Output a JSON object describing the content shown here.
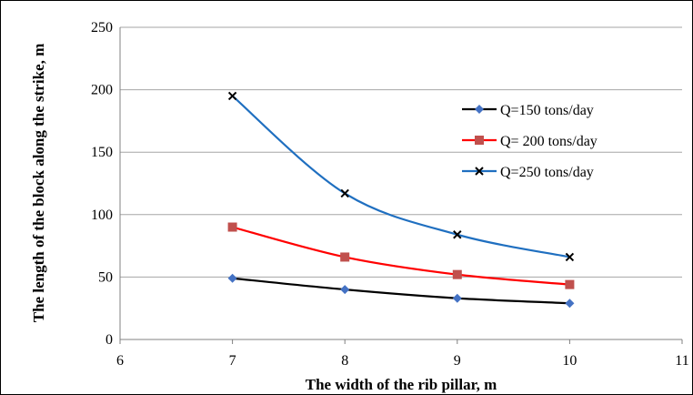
{
  "chart_data": {
    "type": "line",
    "xlabel": "The width of the rib pillar, m",
    "ylabel": "The length of the block along the strike, m",
    "xlim": [
      6,
      11
    ],
    "ylim": [
      0,
      250
    ],
    "x_ticks": [
      6,
      7,
      8,
      9,
      10,
      11
    ],
    "y_ticks": [
      0,
      50,
      100,
      150,
      200,
      250
    ],
    "grid": "horizontal",
    "legend_position": "right",
    "x": [
      7,
      8,
      9,
      10
    ],
    "series": [
      {
        "name": "Q=150 tons/day",
        "values": [
          49,
          40,
          33,
          29
        ],
        "color": "#000000",
        "marker_color": "#4472C4",
        "marker": "diamond"
      },
      {
        "name": "Q= 200 tons/day",
        "values": [
          90,
          66,
          52,
          44
        ],
        "color": "#FF0000",
        "marker_color": "#C0504D",
        "marker": "square"
      },
      {
        "name": "Q=250 tons/day",
        "values": [
          195,
          117,
          84,
          66
        ],
        "color": "#1F6FC0",
        "marker_color": "#000000",
        "marker": "x"
      }
    ]
  }
}
